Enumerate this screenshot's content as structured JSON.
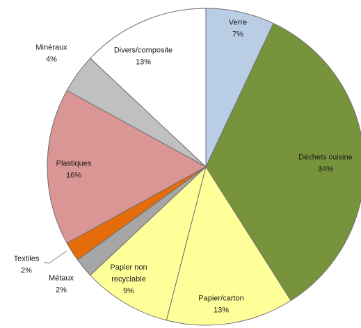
{
  "chart_data": {
    "type": "pie",
    "title": "",
    "slices": [
      {
        "label": "Verre",
        "value": 7,
        "value_label": "7%",
        "color": "#b9cde5"
      },
      {
        "label": "Déchets cuisine",
        "value": 34,
        "value_label": "34%",
        "color": "#77933c"
      },
      {
        "label": "Papier/carton",
        "value": 13,
        "value_label": "13%",
        "color": "#ffff99"
      },
      {
        "label": "Papier non recyclable",
        "value_label": "9%",
        "value": 9,
        "color": "#ffff99",
        "label_lines": [
          "Papier non",
          "recyclable"
        ]
      },
      {
        "label": "Métaux",
        "value": 2,
        "value_label": "2%",
        "color": "#a6a6a6"
      },
      {
        "label": "Textiles",
        "value": 2,
        "value_label": "2%",
        "color": "#e46c0a"
      },
      {
        "label": "Plastiques",
        "value": 16,
        "value_label": "16%",
        "color": "#d99694"
      },
      {
        "label": "Minéraux",
        "value": 4,
        "value_label": "4%",
        "color": "#c0c0c0"
      },
      {
        "label": "Divers/composite",
        "value": 13,
        "value_label": "13%",
        "color": "#ffffff"
      }
    ],
    "start": "12 o'clock",
    "direction": "clockwise"
  }
}
